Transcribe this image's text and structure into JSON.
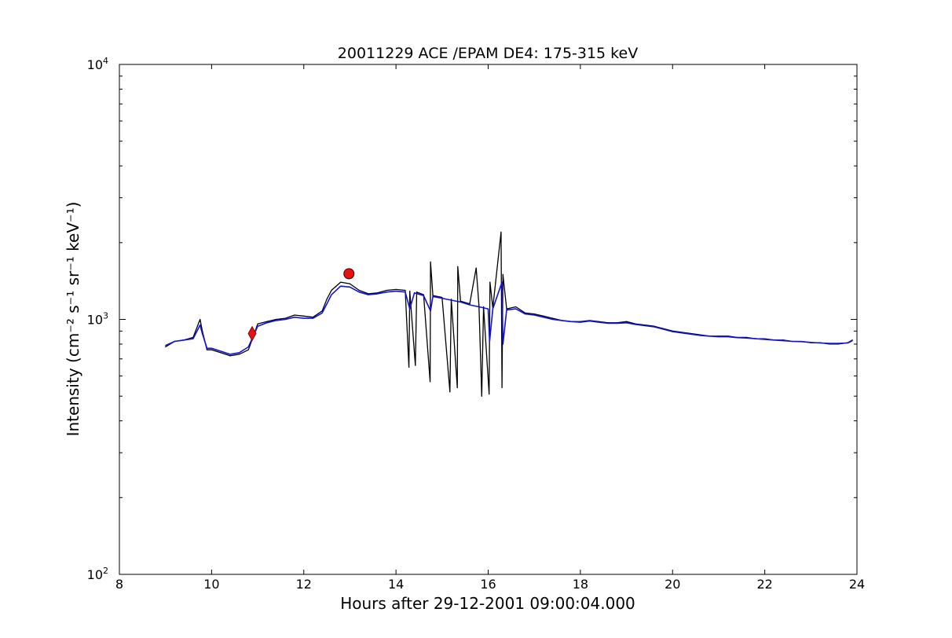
{
  "chart_data": {
    "type": "line",
    "title": "20011229 ACE /EPAM DE4: 175-315 keV",
    "xlabel": "Hours after 29-12-2001 09:00:04.000",
    "ylabel": "Intensity (cm⁻² s⁻¹ sr⁻¹ keV⁻¹)",
    "xlim": [
      8,
      24
    ],
    "ylim": [
      100,
      10000
    ],
    "yscale": "log",
    "grid": false,
    "xticks": [
      8,
      10,
      12,
      14,
      16,
      18,
      20,
      22,
      24
    ],
    "xtick_labels": [
      "8",
      "10",
      "12",
      "14",
      "16",
      "18",
      "20",
      "22",
      "24"
    ],
    "yticks": [
      100,
      1000,
      10000
    ],
    "ytick_labels": [
      {
        "base": "10",
        "exp": "2"
      },
      {
        "base": "10",
        "exp": "3"
      },
      {
        "base": "10",
        "exp": "4"
      }
    ],
    "series": [
      {
        "color": "#000000",
        "x": [
          9.0,
          9.2,
          9.4,
          9.6,
          9.75,
          9.8,
          9.9,
          10.0,
          10.2,
          10.4,
          10.6,
          10.8,
          11.0,
          11.2,
          11.4,
          11.6,
          11.8,
          12.0,
          12.2,
          12.4,
          12.5,
          12.6,
          12.8,
          13.0,
          13.2,
          13.4,
          13.6,
          13.8,
          14.0,
          14.2,
          14.28,
          14.3,
          14.42,
          14.45,
          14.6,
          14.74,
          14.75,
          14.8,
          15.0,
          15.17,
          15.2,
          15.33,
          15.34,
          15.4,
          15.6,
          15.74,
          15.8,
          15.86,
          15.9,
          16.02,
          16.04,
          16.1,
          16.28,
          16.3,
          16.32,
          16.4,
          16.6,
          16.8,
          17.0,
          17.2,
          17.4,
          17.6,
          17.8,
          18.0,
          18.2,
          18.4,
          18.6,
          18.8,
          19.0,
          19.2,
          19.4,
          19.6,
          19.8,
          20.0,
          20.2,
          20.4,
          20.6,
          20.8,
          21.0,
          21.2,
          21.4,
          21.6,
          21.8,
          22.0,
          22.2,
          22.4,
          22.6,
          22.8,
          23.0,
          23.2,
          23.4,
          23.6,
          23.8,
          23.9
        ],
        "y": [
          780,
          820,
          830,
          850,
          1000,
          900,
          760,
          760,
          740,
          720,
          730,
          760,
          960,
          980,
          1000,
          1010,
          1040,
          1030,
          1020,
          1080,
          1200,
          1300,
          1400,
          1380,
          1300,
          1260,
          1270,
          1300,
          1310,
          1300,
          650,
          1290,
          660,
          1280,
          1250,
          570,
          1680,
          1240,
          1220,
          520,
          1200,
          540,
          1610,
          1180,
          1150,
          1590,
          1130,
          500,
          1120,
          510,
          1400,
          1110,
          2200,
          540,
          1500,
          1100,
          1120,
          1060,
          1050,
          1030,
          1010,
          990,
          980,
          980,
          990,
          980,
          970,
          970,
          980,
          960,
          950,
          940,
          920,
          900,
          890,
          880,
          870,
          860,
          860,
          860,
          850,
          850,
          840,
          840,
          830,
          830,
          820,
          820,
          810,
          810,
          800,
          800,
          810,
          830
        ]
      },
      {
        "color": "#1111dd",
        "x": [
          9.0,
          9.2,
          9.4,
          9.6,
          9.75,
          9.8,
          9.9,
          10.0,
          10.2,
          10.4,
          10.6,
          10.8,
          11.0,
          11.2,
          11.4,
          11.6,
          11.8,
          12.0,
          12.2,
          12.4,
          12.5,
          12.6,
          12.8,
          13.0,
          13.2,
          13.4,
          13.6,
          13.8,
          14.0,
          14.2,
          14.3,
          14.4,
          14.6,
          14.75,
          14.8,
          15.0,
          15.2,
          15.4,
          15.6,
          15.8,
          16.0,
          16.03,
          16.1,
          16.3,
          16.32,
          16.4,
          16.6,
          16.8,
          17.0,
          17.2,
          17.4,
          17.6,
          17.8,
          18.0,
          18.2,
          18.4,
          18.6,
          18.8,
          19.0,
          19.2,
          19.4,
          19.6,
          19.8,
          20.0,
          20.2,
          20.4,
          20.6,
          20.8,
          21.0,
          21.2,
          21.4,
          21.6,
          21.8,
          22.0,
          22.2,
          22.4,
          22.6,
          22.8,
          23.0,
          23.2,
          23.4,
          23.6,
          23.8,
          23.9
        ],
        "y": [
          790,
          820,
          830,
          840,
          950,
          880,
          770,
          770,
          750,
          730,
          740,
          780,
          940,
          970,
          990,
          1000,
          1020,
          1010,
          1010,
          1060,
          1150,
          1250,
          1350,
          1340,
          1280,
          1250,
          1260,
          1280,
          1290,
          1280,
          1100,
          1270,
          1240,
          1080,
          1230,
          1210,
          1190,
          1170,
          1140,
          1120,
          1100,
          820,
          1100,
          1400,
          800,
          1090,
          1100,
          1050,
          1040,
          1020,
          1000,
          990,
          980,
          975,
          985,
          975,
          965,
          965,
          970,
          955,
          945,
          935,
          915,
          895,
          885,
          875,
          865,
          860,
          855,
          855,
          848,
          845,
          840,
          835,
          830,
          825,
          820,
          818,
          812,
          808,
          805,
          805,
          808,
          825
        ]
      }
    ],
    "markers": [
      {
        "x": 10.88,
        "y": 880,
        "shape": "diamond",
        "color": "#e81010"
      },
      {
        "x": 12.98,
        "y": 1510,
        "shape": "circle",
        "color": "#e81010"
      }
    ]
  }
}
